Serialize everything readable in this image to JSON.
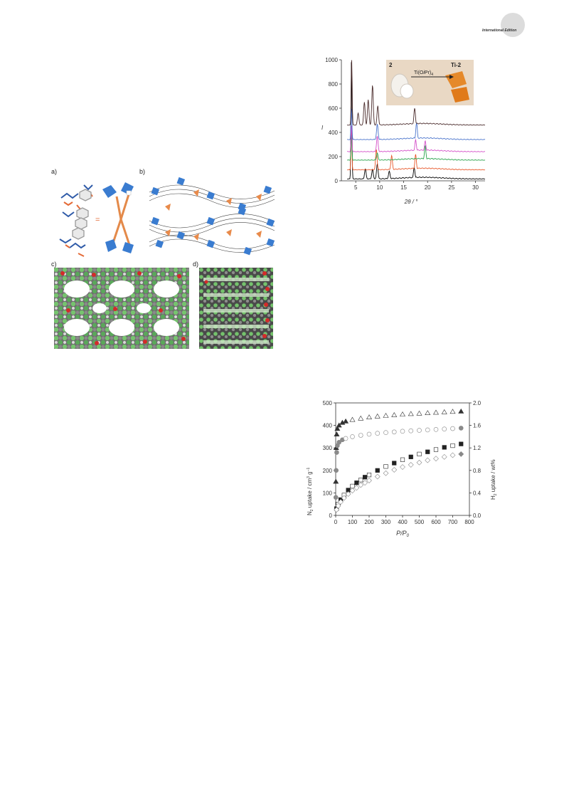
{
  "journal_badge": "International Edition",
  "figure_structure": {
    "panels": [
      "a)",
      "b)",
      "c)",
      "d)"
    ]
  },
  "chart_data": [
    {
      "type": "line",
      "xlabel": "2θ / °",
      "ylabel": "I",
      "xlim": [
        2,
        32
      ],
      "ylim": [
        0,
        1000
      ],
      "x_ticks": [
        "5",
        "10",
        "15",
        "20",
        "25",
        "30"
      ],
      "y_ticks": [
        "0",
        "200",
        "400",
        "600",
        "800",
        "1000"
      ],
      "inset": {
        "left_label": "2",
        "right_label": "Ti-2",
        "arrow_label": "Ti(OiPr)4",
        "arrow_label_main": "Ti(O",
        "arrow_label_italic": "i",
        "arrow_label_rest": "Pr)",
        "arrow_label_sub": "4"
      },
      "series": [
        {
          "color": "#000000",
          "baseline": 15,
          "peaks": [
            [
              4.1,
              1000
            ],
            [
              7.0,
              100
            ],
            [
              8.5,
              95
            ],
            [
              9.5,
              140
            ],
            [
              12.0,
              80
            ],
            [
              17.2,
              110
            ]
          ]
        },
        {
          "color": "#e8572a",
          "baseline": 90,
          "peaks": [
            [
              4.1,
              420
            ],
            [
              9.3,
              260
            ],
            [
              12.5,
              210
            ],
            [
              17.5,
              220
            ]
          ]
        },
        {
          "color": "#27a24a",
          "baseline": 170,
          "peaks": [
            [
              4.1,
              380
            ],
            [
              9.5,
              230
            ],
            [
              19.5,
              290
            ]
          ]
        },
        {
          "color": "#d44fc8",
          "baseline": 240,
          "peaks": [
            [
              4.1,
              460
            ],
            [
              9.5,
              370
            ],
            [
              17.5,
              340
            ],
            [
              19.5,
              330
            ]
          ]
        },
        {
          "color": "#4a74cc",
          "baseline": 340,
          "peaks": [
            [
              4.1,
              600
            ],
            [
              9.5,
              470
            ],
            [
              17.7,
              480
            ]
          ]
        },
        {
          "color": "#4a2b2b",
          "baseline": 460,
          "peaks": [
            [
              4.15,
              1000
            ],
            [
              5.5,
              560
            ],
            [
              6.8,
              650
            ],
            [
              7.6,
              670
            ],
            [
              8.5,
              790
            ],
            [
              9.6,
              620
            ],
            [
              17.3,
              600
            ]
          ]
        }
      ]
    },
    {
      "type": "scatter",
      "xlabel": "P/P0",
      "xlabel_main": "P/P",
      "xlabel_sub": "0",
      "ylabel_left": "N2 uptake / cm3 g−1",
      "ylabel_left_parts": [
        "N",
        "2",
        " uptake / cm",
        "3",
        " g",
        "−1"
      ],
      "ylabel_right": "H2 uptake / wt%",
      "ylabel_right_parts": [
        "H",
        "2",
        " uptake / wt%"
      ],
      "xlim": [
        0,
        800
      ],
      "ylim_left": [
        0,
        500
      ],
      "ylim_right": [
        0.0,
        2.0
      ],
      "x_ticks": [
        "0",
        "100",
        "200",
        "300",
        "400",
        "500",
        "600",
        "700",
        "800"
      ],
      "y_ticks_left": [
        "0",
        "100",
        "200",
        "300",
        "400",
        "500"
      ],
      "y_ticks_right": [
        "0.0",
        "0.4",
        "0.8",
        "1.2",
        "1.6",
        "2.0"
      ],
      "series": [
        {
          "marker": "triangle",
          "axis": "left",
          "x": [
            1,
            3,
            6,
            10,
            20,
            40,
            60,
            100,
            150,
            200,
            250,
            300,
            350,
            400,
            450,
            500,
            550,
            600,
            650,
            700,
            750
          ],
          "y": [
            150,
            300,
            360,
            385,
            400,
            412,
            418,
            425,
            431,
            436,
            440,
            443,
            446,
            449,
            451,
            453,
            455,
            457,
            459,
            461,
            462
          ]
        },
        {
          "marker": "circle",
          "axis": "left",
          "x": [
            1,
            3,
            6,
            10,
            20,
            40,
            60,
            100,
            150,
            200,
            250,
            300,
            350,
            400,
            450,
            500,
            550,
            600,
            650,
            700,
            750
          ],
          "y": [
            80,
            200,
            280,
            310,
            325,
            336,
            342,
            350,
            356,
            361,
            365,
            368,
            371,
            374,
            376,
            378,
            380,
            382,
            384,
            386,
            388
          ]
        },
        {
          "marker": "square",
          "axis": "right",
          "x": [
            5,
            15,
            30,
            50,
            75,
            100,
            125,
            150,
            175,
            200,
            250,
            300,
            350,
            400,
            450,
            500,
            550,
            600,
            650,
            700,
            750
          ],
          "y": [
            0.12,
            0.2,
            0.28,
            0.36,
            0.45,
            0.52,
            0.58,
            0.63,
            0.68,
            0.72,
            0.8,
            0.87,
            0.93,
            0.99,
            1.04,
            1.09,
            1.13,
            1.17,
            1.21,
            1.24,
            1.27
          ]
        },
        {
          "marker": "diamond",
          "axis": "right",
          "x": [
            5,
            15,
            30,
            50,
            75,
            100,
            125,
            150,
            175,
            200,
            250,
            300,
            350,
            400,
            450,
            500,
            550,
            600,
            650,
            700,
            750
          ],
          "y": [
            0.1,
            0.17,
            0.24,
            0.31,
            0.38,
            0.44,
            0.49,
            0.54,
            0.58,
            0.62,
            0.69,
            0.75,
            0.81,
            0.86,
            0.9,
            0.94,
            0.98,
            1.01,
            1.04,
            1.07,
            1.09
          ]
        }
      ]
    }
  ]
}
